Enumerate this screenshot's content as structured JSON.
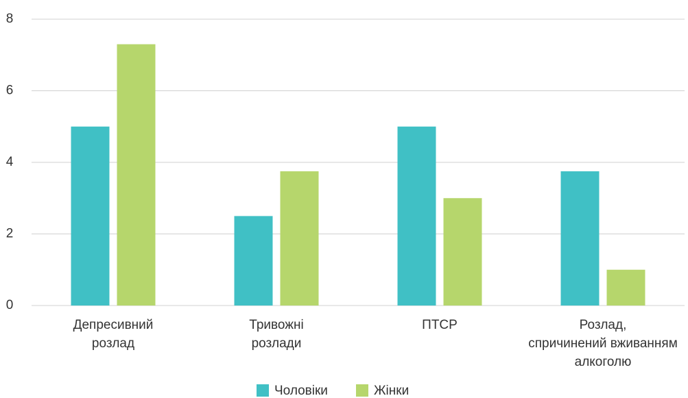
{
  "chart_data": {
    "type": "bar",
    "categories": [
      "Депресивний\nрозлад",
      "Тривожні\nрозлади",
      "ПТСР",
      "Розлад,\nспричинений вживанням\nалкоголю"
    ],
    "series": [
      {
        "name": "Чоловіки",
        "color": "#40c0c5",
        "values": [
          5.0,
          2.5,
          5.0,
          3.75
        ]
      },
      {
        "name": "Жінки",
        "color": "#b6d66c",
        "values": [
          7.3,
          3.75,
          3.0,
          1.0
        ]
      }
    ],
    "ylim": [
      0,
      8
    ],
    "yticks": [
      0,
      2,
      4,
      6,
      8
    ],
    "grid": true,
    "legend": "bottom"
  }
}
